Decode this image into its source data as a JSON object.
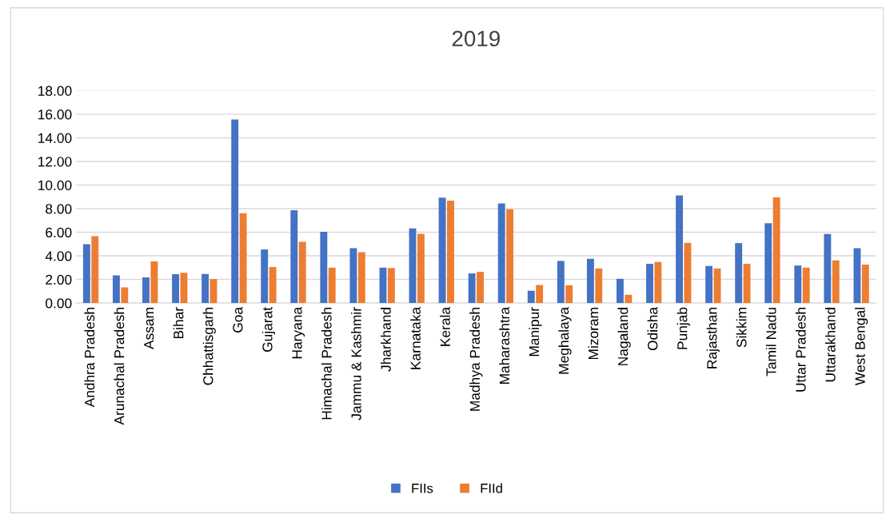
{
  "chart_data": {
    "type": "bar",
    "title": "2019",
    "categories": [
      "Andhra Pradesh",
      "Arunachal Pradesh",
      "Assam",
      "Bihar",
      "Chhattisgarh",
      "Goa",
      "Gujarat",
      "Haryana",
      "Himachal Pradesh",
      "Jammu & Kashmir",
      "Jharkhand",
      "Karnataka",
      "Kerala",
      "Madhya Pradesh",
      "Maharashtra",
      "Manipur",
      "Meghalaya",
      "Mizoram",
      "Nagaland",
      "Odisha",
      "Punjab",
      "Rajasthan",
      "Sikkim",
      "Tamil Nadu",
      "Uttar Pradesh",
      "Uttarakhand",
      "West Bengal"
    ],
    "series": [
      {
        "name": "FIIs",
        "color": "#4472c4",
        "values": [
          4.99,
          2.35,
          2.17,
          2.44,
          2.46,
          15.55,
          4.54,
          7.86,
          6.03,
          4.65,
          3.0,
          6.32,
          8.94,
          2.51,
          8.44,
          1.04,
          3.57,
          3.75,
          2.05,
          3.32,
          9.12,
          3.14,
          5.08,
          6.77,
          3.18,
          5.85,
          4.65
        ]
      },
      {
        "name": "FIId",
        "color": "#ed7d31",
        "values": [
          5.67,
          1.33,
          3.52,
          2.57,
          2.03,
          7.61,
          3.05,
          5.19,
          3.0,
          4.31,
          2.96,
          5.87,
          8.67,
          2.64,
          7.95,
          1.53,
          1.51,
          2.93,
          0.7,
          3.48,
          5.1,
          2.93,
          3.32,
          8.96,
          3.0,
          3.61,
          3.25
        ]
      }
    ],
    "ylim": [
      0,
      18
    ],
    "yticks": [
      {
        "value": 0,
        "label": "0.00"
      },
      {
        "value": 2,
        "label": "2.00"
      },
      {
        "value": 4,
        "label": "4.00"
      },
      {
        "value": 6,
        "label": "6.00"
      },
      {
        "value": 8,
        "label": "8.00"
      },
      {
        "value": 10,
        "label": "10.00"
      },
      {
        "value": 12,
        "label": "12.00"
      },
      {
        "value": 14,
        "label": "14.00"
      },
      {
        "value": 16,
        "label": "16.00"
      },
      {
        "value": 18,
        "label": "18.00"
      }
    ],
    "grid": "y",
    "legend": "bottom"
  }
}
